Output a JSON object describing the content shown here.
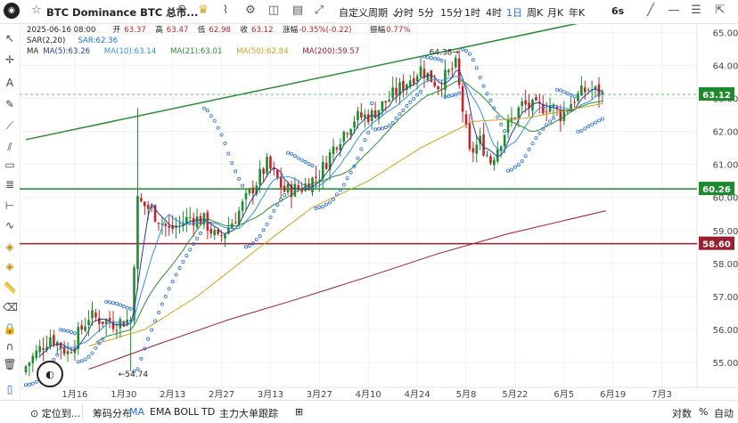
{
  "header": {
    "symbol_title": "BTC Dominance BTC 总市...",
    "interval_dropdown": "自定义周期",
    "intervals": [
      "分时",
      "5分",
      "15分",
      "1时",
      "4时",
      "1日",
      "周K",
      "月K",
      "年K"
    ],
    "active_interval": "1日",
    "refresh_label": "6s",
    "icons": [
      "logo-icon",
      "favorite-star-icon",
      "search-icon",
      "crown-icon",
      "indicators-icon",
      "settings-icon",
      "camera-icon",
      "layout-icon",
      "fullscreen-icon",
      "horizontal-line-icon",
      "menu-icon"
    ]
  },
  "legend": {
    "date": "2025-06-16 08:00",
    "open_label": "开",
    "open": "63.37",
    "high_label": "高",
    "high": "63.47",
    "low_label": "低",
    "low": "62.98",
    "close_label": "收",
    "close": "63.12",
    "change_label": "涨幅",
    "change": "-0.35%(-0.22)",
    "amp_label": "振幅",
    "amp": "0.77%",
    "sar_label": "SAR(2,20)",
    "sar_value_label": "SAR:62.36",
    "ma_label": "MA",
    "ma": [
      {
        "label": "MA(5):63.26",
        "color": "#2c3e8f"
      },
      {
        "label": "MA(10):63.14",
        "color": "#3a8fd9"
      },
      {
        "label": "MA(21):63.01",
        "color": "#2e8b3a"
      },
      {
        "label": "MA(50):62.84",
        "color": "#c9a227"
      },
      {
        "label": "MA(200):59.57",
        "color": "#9a1f2e"
      }
    ]
  },
  "price_labels": [
    {
      "text": "63.12",
      "value": 63.12,
      "color": "#1e8a2e"
    },
    {
      "text": "60.26",
      "value": 60.26,
      "color": "#1e8a2e"
    },
    {
      "text": "58.60",
      "value": 58.6,
      "color": "#9a1f2e"
    }
  ],
  "annotations": {
    "high_marker": "64.38",
    "low_marker": "54.74"
  },
  "chart_data": {
    "type": "candlestick",
    "title": "BTC Dominance",
    "x_ticks": [
      "1月16",
      "1月30",
      "2月13",
      "2月27",
      "3月13",
      "3月27",
      "4月10",
      "4月24",
      "5月8",
      "5月22",
      "6月5",
      "6月19",
      "7月3"
    ],
    "y_ticks": [
      55.0,
      56.0,
      57.0,
      58.0,
      59.0,
      60.0,
      61.0,
      62.0,
      63.0,
      64.0,
      65.0
    ],
    "ylim": [
      54.25,
      65.25
    ],
    "grid": true,
    "up_color": "#1e8a2e",
    "down_color": "#c0242c",
    "horizontal_lines": [
      {
        "value": 60.26,
        "color": "#1e8a2e",
        "style": "solid"
      },
      {
        "value": 58.6,
        "color": "#9a1f2e",
        "style": "solid"
      },
      {
        "value": 63.12,
        "color": "#6fbf6f",
        "style": "dashed"
      }
    ],
    "trend_line": {
      "from": [
        "2025-01-02",
        61.75
      ],
      "to": [
        "2025-06-17",
        65.45
      ],
      "color": "#2e8b3a"
    },
    "anchors": [
      [
        "2025-01-02",
        54.9
      ],
      [
        "2025-01-09",
        55.8
      ],
      [
        "2025-01-14",
        55.3
      ],
      [
        "2025-01-20",
        56.4
      ],
      [
        "2025-01-27",
        56.2
      ],
      [
        "2025-02-01",
        56.3
      ],
      [
        "2025-02-03",
        59.9
      ],
      [
        "2025-02-07",
        59.6
      ],
      [
        "2025-02-12",
        59.0
      ],
      [
        "2025-02-18",
        59.4
      ],
      [
        "2025-02-22",
        59.3
      ],
      [
        "2025-02-26",
        58.7
      ],
      [
        "2025-03-03",
        59.4
      ],
      [
        "2025-03-08",
        60.3
      ],
      [
        "2025-03-12",
        61.0
      ],
      [
        "2025-03-17",
        60.2
      ],
      [
        "2025-03-22",
        60.3
      ],
      [
        "2025-03-27",
        60.7
      ],
      [
        "2025-04-01",
        61.7
      ],
      [
        "2025-04-06",
        62.4
      ],
      [
        "2025-04-11",
        62.5
      ],
      [
        "2025-04-16",
        63.0
      ],
      [
        "2025-04-21",
        63.5
      ],
      [
        "2025-04-25",
        63.9
      ],
      [
        "2025-04-30",
        63.4
      ],
      [
        "2025-05-05",
        64.0
      ],
      [
        "2025-05-09",
        61.3
      ],
      [
        "2025-05-12",
        61.7
      ],
      [
        "2025-05-15",
        61.1
      ],
      [
        "2025-05-20",
        62.2
      ],
      [
        "2025-05-24",
        62.8
      ],
      [
        "2025-05-28",
        62.7
      ],
      [
        "2025-06-01",
        62.8
      ],
      [
        "2025-06-04",
        62.5
      ],
      [
        "2025-06-08",
        63.0
      ],
      [
        "2025-06-12",
        63.3
      ],
      [
        "2025-06-16",
        63.12
      ]
    ],
    "ma_series": [
      {
        "name": "MA(50)",
        "color": "#c9a227",
        "points": [
          [
            "2025-01-20",
            55.5
          ],
          [
            "2025-02-05",
            56.0
          ],
          [
            "2025-02-20",
            57.0
          ],
          [
            "2025-03-10",
            58.5
          ],
          [
            "2025-03-25",
            59.7
          ],
          [
            "2025-04-10",
            60.5
          ],
          [
            "2025-04-25",
            61.5
          ],
          [
            "2025-05-10",
            62.3
          ],
          [
            "2025-05-25",
            62.4
          ],
          [
            "2025-06-16",
            62.84
          ]
        ]
      },
      {
        "name": "MA(200)",
        "color": "#9a1f2e",
        "points": [
          [
            "2025-01-20",
            54.8
          ],
          [
            "2025-02-10",
            55.6
          ],
          [
            "2025-03-01",
            56.3
          ],
          [
            "2025-03-20",
            56.9
          ],
          [
            "2025-04-10",
            57.6
          ],
          [
            "2025-04-30",
            58.3
          ],
          [
            "2025-05-20",
            58.9
          ],
          [
            "2025-06-05",
            59.3
          ],
          [
            "2025-06-17",
            59.6
          ]
        ]
      }
    ]
  },
  "bottom": {
    "items": [
      "定位到...",
      "筹码分布",
      "MA",
      "EMA",
      "BOLL",
      "TD",
      "主力大单跟踪"
    ],
    "active": "MA",
    "right_items": [
      "对数",
      "%",
      "自动"
    ]
  }
}
